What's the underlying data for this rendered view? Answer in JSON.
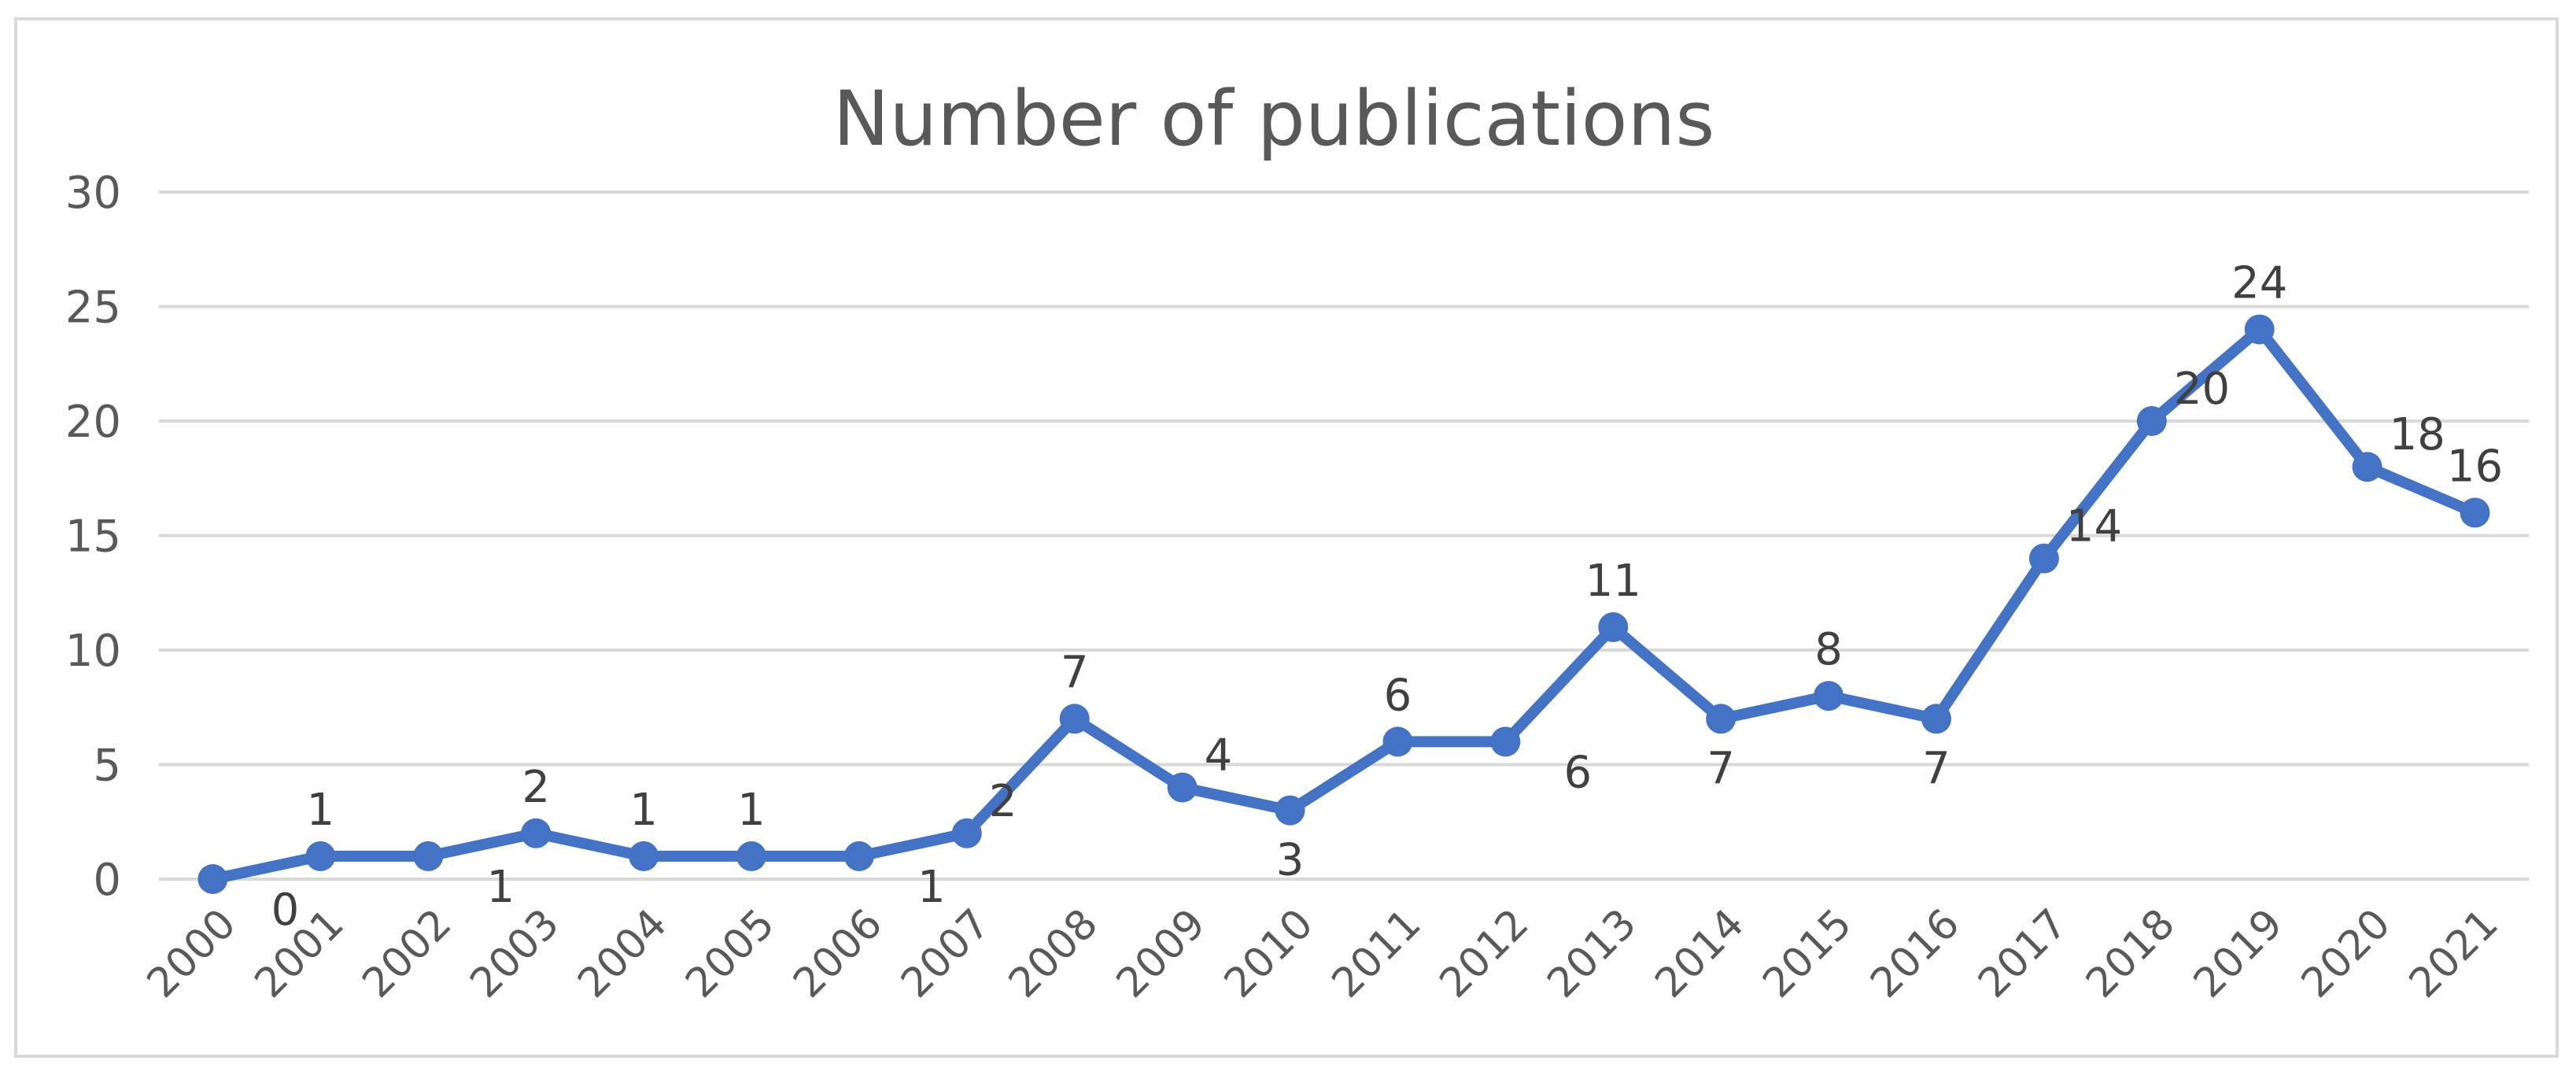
{
  "chart_data": {
    "type": "line",
    "title": "Number of publications",
    "xlabel": "",
    "ylabel": "",
    "categories": [
      "2000",
      "2001",
      "2002",
      "2003",
      "2004",
      "2005",
      "2006",
      "2007",
      "2008",
      "2009",
      "2010",
      "2011",
      "2012",
      "2013",
      "2014",
      "2015",
      "2016",
      "2017",
      "2018",
      "2019",
      "2020",
      "2021"
    ],
    "values": [
      0,
      1,
      1,
      2,
      1,
      1,
      1,
      2,
      7,
      4,
      3,
      6,
      6,
      11,
      7,
      8,
      7,
      14,
      20,
      24,
      18,
      16
    ],
    "ylim": [
      0,
      30
    ],
    "yticks": [
      0,
      5,
      10,
      15,
      20,
      25,
      30
    ],
    "grid": true,
    "legend": "none",
    "data_labels": true,
    "line_color": "#4472C4",
    "gridline_color": "#d9d9d9",
    "text_color": "#595959"
  }
}
